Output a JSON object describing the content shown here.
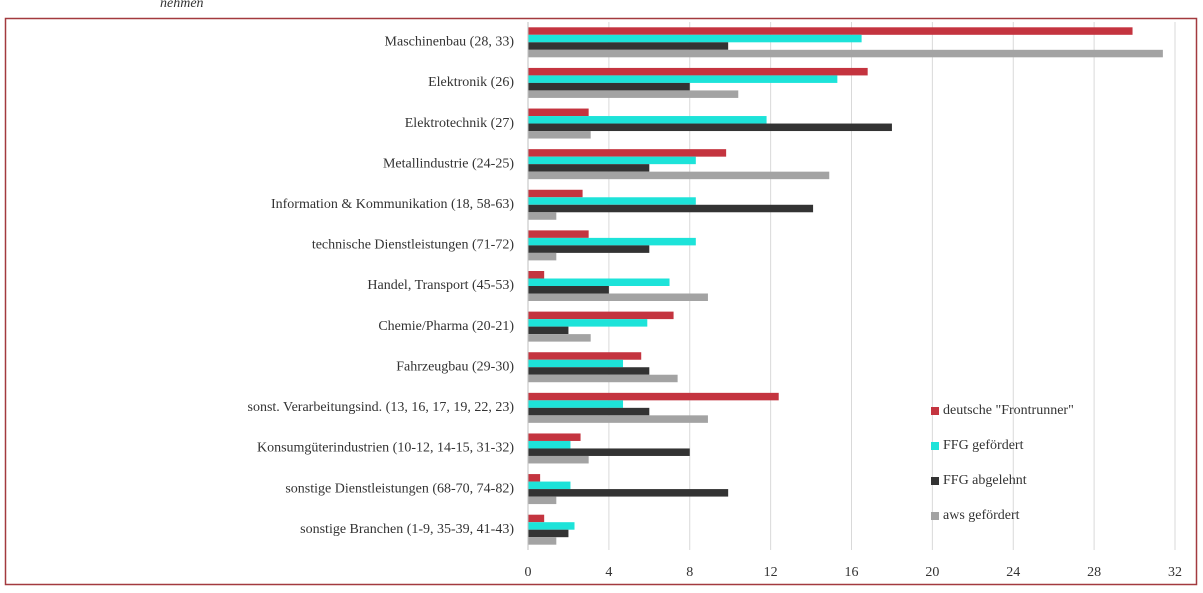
{
  "chart_data": {
    "type": "hbar",
    "title": "nehmen",
    "categories": [
      "Maschinenbau (28, 33)",
      "Elektronik (26)",
      "Elektrotechnik (27)",
      "Metallindustrie (24-25)",
      "Information & Kommunikation (18, 58-63)",
      "technische Dienstleistungen (71-72)",
      "Handel, Transport (45-53)",
      "Chemie/Pharma (20-21)",
      "Fahrzeugbau (29-30)",
      "sonst. Verarbeitungsind. (13, 16, 17, 19, 22, 23)",
      "Konsumgüterindustrien (10-12, 14-15, 31-32)",
      "sonstige Dienstleistungen (68-70, 74-82)",
      "sonstige Branchen (1-9, 35-39, 41-43)"
    ],
    "series": [
      {
        "name": "deutsche \"Frontrunner\"",
        "color": "#c4343f",
        "values": [
          29.9,
          16.8,
          3.0,
          9.8,
          2.7,
          3.0,
          0.8,
          7.2,
          5.6,
          12.4,
          2.6,
          0.6,
          0.8
        ]
      },
      {
        "name": "FFG gefördert",
        "color": "#1de3d9",
        "values": [
          16.5,
          15.3,
          11.8,
          8.3,
          8.3,
          8.3,
          7.0,
          5.9,
          4.7,
          4.7,
          2.1,
          2.1,
          2.3
        ]
      },
      {
        "name": "FFG abgelehnt",
        "color": "#333333",
        "values": [
          9.9,
          8.0,
          18.0,
          6.0,
          14.1,
          6.0,
          4.0,
          2.0,
          6.0,
          6.0,
          8.0,
          9.9,
          2.0
        ]
      },
      {
        "name": "aws gefördert",
        "color": "#a3a3a3",
        "values": [
          31.4,
          10.4,
          3.1,
          14.9,
          1.4,
          1.4,
          8.9,
          3.1,
          7.4,
          8.9,
          3.0,
          1.4,
          1.4
        ]
      }
    ],
    "xlim": [
      0,
      32
    ],
    "xticks": [
      0,
      4,
      8,
      12,
      16,
      20,
      24,
      28,
      32
    ],
    "grid": true,
    "legend": "bottom-right"
  }
}
